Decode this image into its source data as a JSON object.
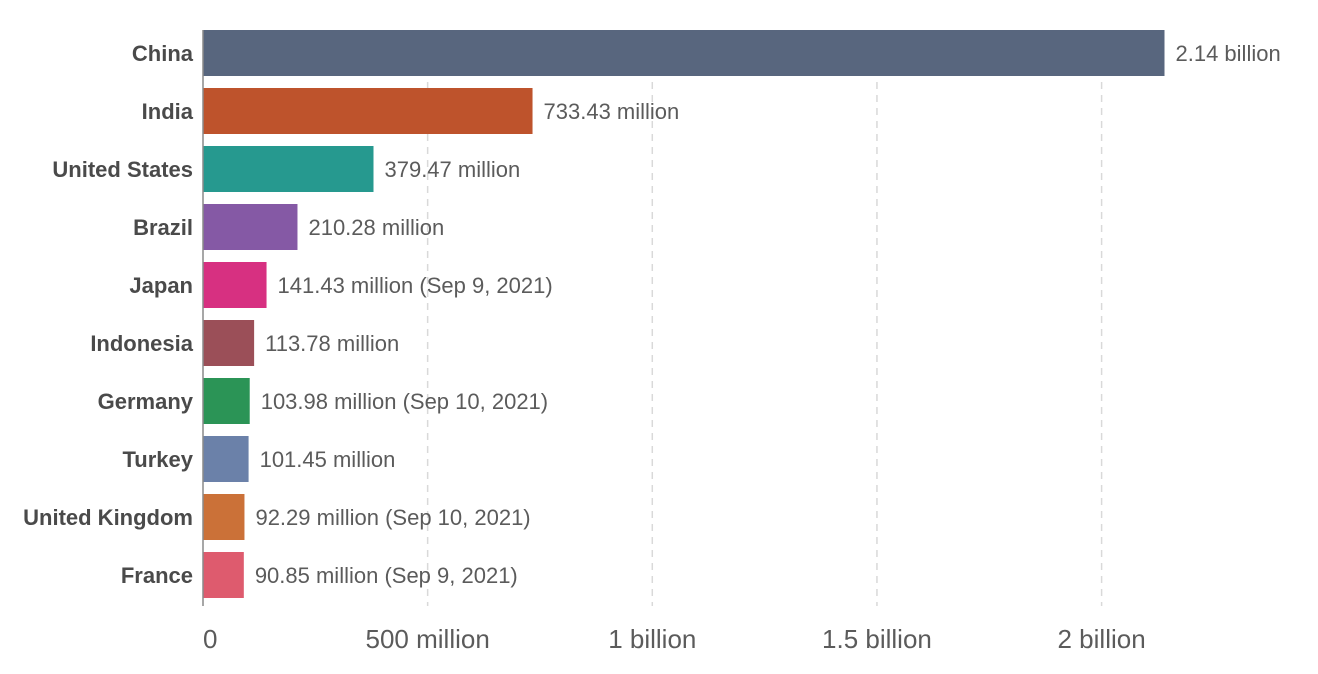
{
  "chart_data": {
    "type": "bar",
    "orientation": "horizontal",
    "categories": [
      "China",
      "India",
      "United States",
      "Brazil",
      "Japan",
      "Indonesia",
      "Germany",
      "Turkey",
      "United Kingdom",
      "France"
    ],
    "values": [
      2140000000,
      733430000,
      379470000,
      210280000,
      141430000,
      113780000,
      103980000,
      101450000,
      92290000,
      90850000
    ],
    "value_labels": [
      "2.14 billion",
      "733.43 million",
      "379.47 million",
      "210.28 million",
      "141.43 million (Sep 9, 2021)",
      "113.78 million",
      "103.98 million (Sep 10, 2021)",
      "101.45 million",
      "92.29 million (Sep 10, 2021)",
      "90.85 million (Sep 9, 2021)"
    ],
    "colors": [
      "#58667e",
      "#be532c",
      "#26998f",
      "#8559a5",
      "#d73081",
      "#9b4f58",
      "#2b9456",
      "#6b81a9",
      "#cb7138",
      "#de5b6e"
    ],
    "xticks": [
      0,
      500000000,
      1000000000,
      1500000000,
      2000000000
    ],
    "xtick_labels": [
      "0",
      "500 million",
      "1 billion",
      "1.5 billion",
      "2 billion"
    ],
    "xlim": [
      0,
      2400000000
    ],
    "grid": true,
    "title": "",
    "xlabel": "",
    "ylabel": ""
  }
}
